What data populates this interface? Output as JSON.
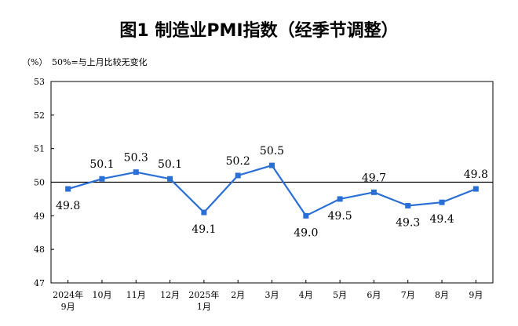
{
  "chart_data": {
    "type": "line",
    "title": "图1  制造业PMI指数（经季节调整）",
    "unit": "（%）",
    "annotation": "50%=与上月比较无变化",
    "categories": [
      [
        "2024年",
        "9月"
      ],
      [
        "10月"
      ],
      [
        "11月"
      ],
      [
        "12月"
      ],
      [
        "2025年",
        "1月"
      ],
      [
        "2月"
      ],
      [
        "3月"
      ],
      [
        "4月"
      ],
      [
        "5月"
      ],
      [
        "6月"
      ],
      [
        "7月"
      ],
      [
        "8月"
      ],
      [
        "9月"
      ]
    ],
    "values": [
      49.8,
      50.1,
      50.3,
      50.1,
      49.1,
      50.2,
      50.5,
      49.0,
      49.5,
      49.7,
      49.3,
      49.4,
      49.8
    ],
    "value_labels": [
      "49.8",
      "50.1",
      "50.3",
      "50.1",
      "49.1",
      "50.2",
      "50.5",
      "49.0",
      "49.5",
      "49.7",
      "49.3",
      "49.4",
      "49.8"
    ],
    "ylim": [
      47,
      53
    ],
    "yticks": [
      47,
      48,
      49,
      50,
      51,
      52,
      53
    ],
    "reference_line": 50,
    "grid": false,
    "colors": {
      "line": "#2a6fd6",
      "marker": "#2a6fd6",
      "reference": "#000000",
      "frame": "#000000"
    }
  }
}
